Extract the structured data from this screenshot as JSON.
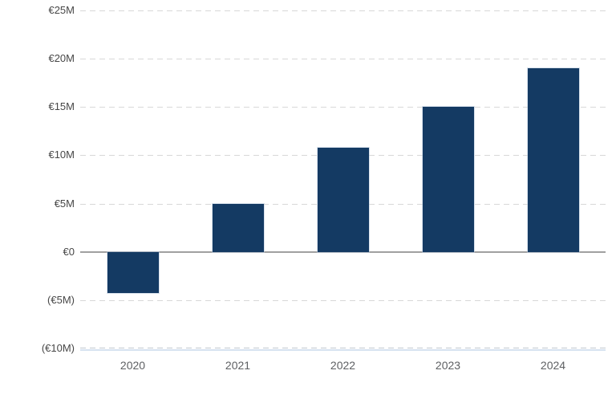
{
  "chart_data": {
    "type": "bar",
    "title": "",
    "xlabel": "",
    "ylabel": "",
    "unit": "EUR millions",
    "categories": [
      "2020",
      "2021",
      "2022",
      "2023",
      "2024"
    ],
    "series": [
      {
        "name": "value",
        "values": [
          -4.3,
          5.0,
          10.8,
          15.0,
          19.0
        ]
      }
    ],
    "ylim": [
      -10,
      25
    ],
    "ytick_interval": 5,
    "yticks": [
      {
        "value": 25,
        "label": "€25M"
      },
      {
        "value": 20,
        "label": "€20M"
      },
      {
        "value": 15,
        "label": "€15M"
      },
      {
        "value": 10,
        "label": "€10M"
      },
      {
        "value": 5,
        "label": "€5M"
      },
      {
        "value": 0,
        "label": "€0"
      },
      {
        "value": -5,
        "label": "(€5M)"
      },
      {
        "value": -10,
        "label": "(€10M)"
      }
    ],
    "grid": "horizontal-dashed",
    "legend": "none",
    "colors": {
      "bar": "#143a63",
      "gridline": "#d8d8d8",
      "zero_line": "#a0a0a0",
      "bottom_axis_line": "#d6e2f0",
      "ytick_text": "#474747",
      "xtick_text": "#5e6063",
      "background": "#ffffff"
    }
  }
}
